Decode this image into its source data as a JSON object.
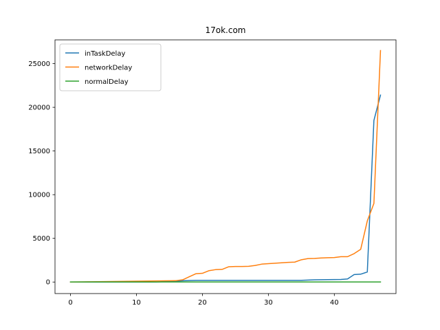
{
  "chart_data": {
    "type": "line",
    "title": "17ok.com",
    "xlabel": "",
    "ylabel": "",
    "xlim": [
      -2.35,
      49.35
    ],
    "ylim": [
      -1320,
      27720
    ],
    "xticks": [
      0,
      10,
      20,
      30,
      40
    ],
    "yticks": [
      0,
      5000,
      10000,
      15000,
      20000,
      25000
    ],
    "grid": false,
    "legend_position": "upper-left",
    "x": [
      0,
      1,
      2,
      3,
      4,
      5,
      6,
      7,
      8,
      9,
      10,
      11,
      12,
      13,
      14,
      15,
      16,
      17,
      18,
      19,
      20,
      21,
      22,
      23,
      24,
      25,
      26,
      27,
      28,
      29,
      30,
      31,
      32,
      33,
      34,
      35,
      36,
      37,
      38,
      39,
      40,
      41,
      42,
      43,
      44,
      45,
      46,
      47
    ],
    "series": [
      {
        "name": "inTaskDelay",
        "color": "#1f77b4",
        "values": [
          0,
          0,
          0,
          0,
          0,
          0,
          0,
          0,
          0,
          0,
          0,
          0,
          0,
          0,
          50,
          80,
          100,
          150,
          180,
          190,
          190,
          190,
          190,
          190,
          190,
          190,
          190,
          190,
          190,
          190,
          190,
          190,
          190,
          200,
          200,
          200,
          220,
          250,
          260,
          270,
          280,
          290,
          350,
          850,
          900,
          1150,
          18500,
          21400
        ]
      },
      {
        "name": "networkDelay",
        "color": "#ff7f0e",
        "values": [
          0,
          10,
          20,
          30,
          40,
          50,
          60,
          70,
          80,
          90,
          100,
          110,
          120,
          130,
          140,
          150,
          160,
          250,
          600,
          950,
          1000,
          1300,
          1420,
          1450,
          1750,
          1780,
          1780,
          1800,
          1900,
          2050,
          2100,
          2150,
          2200,
          2250,
          2280,
          2550,
          2680,
          2700,
          2750,
          2780,
          2800,
          2900,
          2900,
          3250,
          3750,
          7000,
          9000,
          26500
        ]
      },
      {
        "name": "normalDelay",
        "color": "#2ca02c",
        "values": [
          5,
          5,
          5,
          5,
          5,
          5,
          5,
          5,
          5,
          5,
          5,
          5,
          5,
          5,
          5,
          5,
          5,
          5,
          5,
          5,
          5,
          5,
          5,
          5,
          5,
          5,
          5,
          5,
          5,
          5,
          5,
          5,
          5,
          5,
          5,
          5,
          5,
          5,
          5,
          5,
          5,
          5,
          5,
          5,
          5,
          5,
          5,
          5
        ]
      }
    ]
  }
}
